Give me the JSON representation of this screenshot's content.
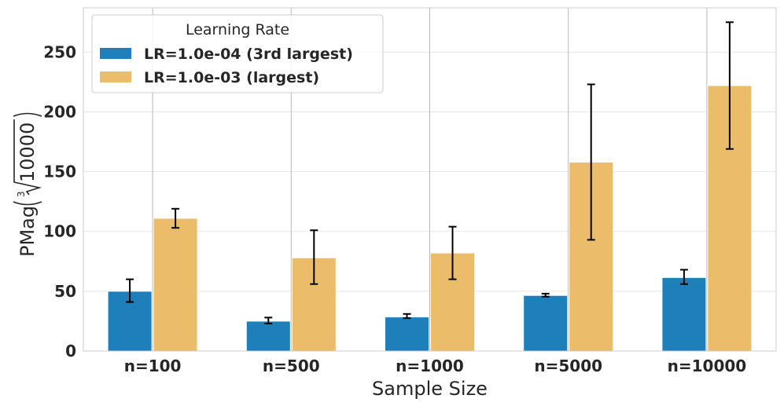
{
  "chart_data": {
    "type": "bar",
    "title": "",
    "xlabel": "Sample Size",
    "ylabel_prefix": "PMag",
    "ylabel_root_index": "3",
    "ylabel_radicand": "10000",
    "categories": [
      "n=100",
      "n=500",
      "n=1000",
      "n=5000",
      "n=10000"
    ],
    "ylim": [
      0,
      287
    ],
    "yticks": [
      0,
      50,
      100,
      150,
      200,
      250
    ],
    "grid": true,
    "legend": {
      "title": "Learning Rate",
      "placement": "top-left"
    },
    "series": [
      {
        "name": "LR=1.0e-04 (3rd largest)",
        "color": "#1f7fbb",
        "values": [
          50,
          25,
          28.5,
          46.5,
          61.5
        ],
        "err_low": [
          41,
          23,
          27.5,
          45.5,
          56
        ],
        "err_high": [
          60,
          28,
          31,
          48,
          68
        ]
      },
      {
        "name": "LR=1.0e-03 (largest)",
        "color": "#ebbd6b",
        "values": [
          111,
          78,
          82,
          158,
          222
        ],
        "err_low": [
          103,
          56,
          60,
          93,
          169
        ],
        "err_high": [
          119,
          101,
          104,
          223,
          275
        ]
      }
    ]
  }
}
